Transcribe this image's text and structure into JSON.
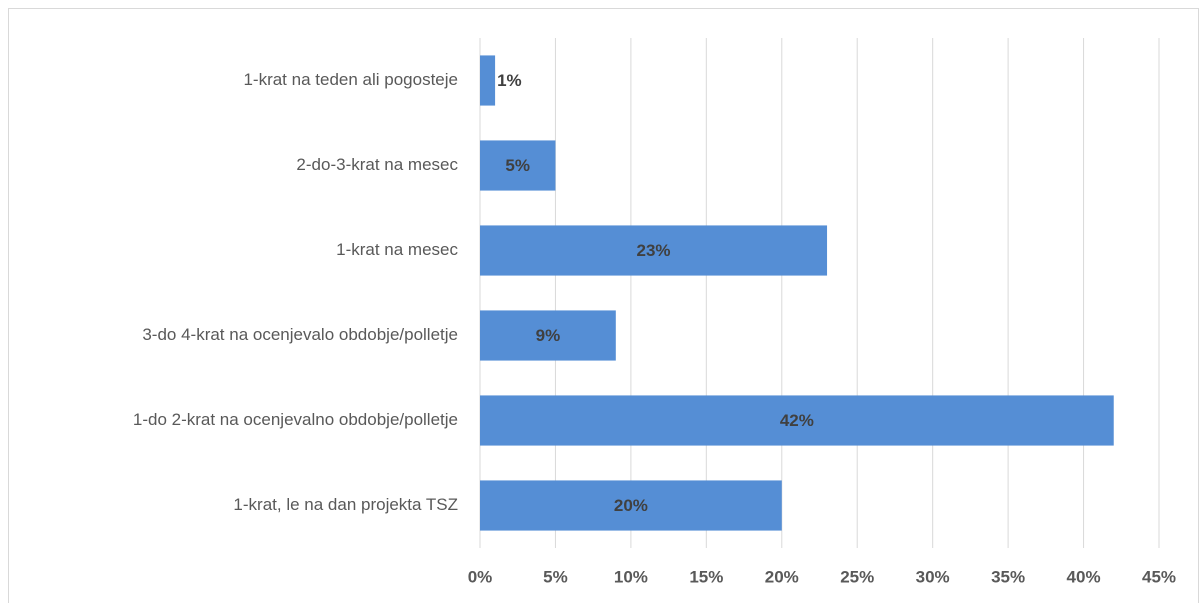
{
  "chart_data": {
    "type": "hbar",
    "categories": [
      "1-krat na teden ali pogosteje",
      "2-do-3-krat na mesec",
      "1-krat na mesec",
      "3-do 4-krat na ocenjevalo obdobje/polletje",
      "1-do 2-krat na ocenjevalno obdobje/polletje",
      "1-krat, le na dan projekta TSZ"
    ],
    "values": [
      1,
      5,
      23,
      9,
      42,
      20
    ],
    "value_labels": [
      "1%",
      "5%",
      "23%",
      "9%",
      "42%",
      "20%"
    ],
    "color": "#558ed5",
    "xlim": [
      0,
      45
    ],
    "xticks": [
      {
        "value": 0,
        "label": "0%"
      },
      {
        "value": 5,
        "label": "5%"
      },
      {
        "value": 10,
        "label": "10%"
      },
      {
        "value": 15,
        "label": "15%"
      },
      {
        "value": 20,
        "label": "20%"
      },
      {
        "value": 25,
        "label": "25%"
      },
      {
        "value": 30,
        "label": "30%"
      },
      {
        "value": 35,
        "label": "35%"
      },
      {
        "value": 40,
        "label": "40%"
      },
      {
        "value": 45,
        "label": "45%"
      }
    ],
    "grid": true
  }
}
